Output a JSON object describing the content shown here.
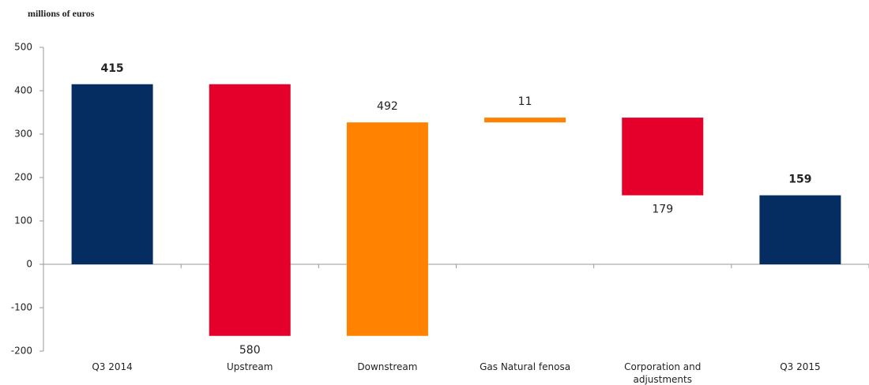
{
  "chart_data": {
    "type": "waterfall",
    "title": "millions of euros",
    "categories": [
      "Q3 2014",
      "Upstream",
      "Downstream",
      "Gas Natural fenosa",
      "Corporation and adjustments",
      "Q3 2015"
    ],
    "values": [
      415,
      -580,
      492,
      11,
      -179,
      159
    ],
    "value_labels": [
      "415",
      "580",
      "492",
      "11",
      "179",
      "159"
    ],
    "colors": [
      "#062d61",
      "#e4002b",
      "#ff8200",
      "#ff8200",
      "#e4002b",
      "#062d61"
    ],
    "ylim": [
      -200,
      500
    ],
    "yticks": [
      -200,
      -100,
      0,
      100,
      200,
      300,
      400,
      500
    ],
    "grid": false
  }
}
